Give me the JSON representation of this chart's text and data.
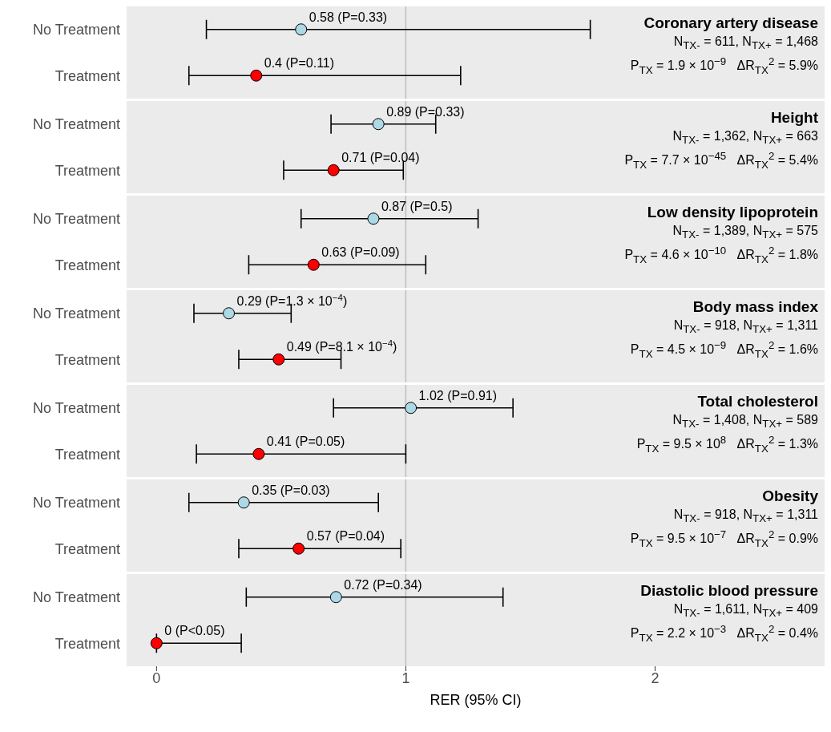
{
  "chart_data": [
    {
      "type": "scatter",
      "orientation": "horizontal",
      "title": "Coronary artery disease",
      "categories": [
        "No Treatment",
        "Treatment"
      ],
      "values": [
        0.58,
        0.4
      ],
      "errors": [
        [
          0.2,
          1.74
        ],
        [
          0.13,
          1.22
        ]
      ],
      "colors": [
        "#add8e6",
        "#ff0000"
      ],
      "value_labels": [
        "0.58 (P=0.33)",
        "0.4 (P=0.11)"
      ],
      "annotations": [
        "N$_{TX-}$ = 611, N$_{TX+}$ = 1,468",
        "P$_{TX}$ = 1.9 × 10$^{−9}$   ΔR$_{TX}$$^{2}$ = 5.9%"
      ],
      "ref_lines": [
        {
          "axis": "x",
          "value": 1,
          "color": "#bdbdbd"
        }
      ],
      "xlim": [
        -0.12,
        2.68
      ],
      "xticks": [
        0,
        1,
        2
      ],
      "tick_labels": "y",
      "marker": "circle"
    },
    {
      "type": "scatter",
      "orientation": "horizontal",
      "title": "Height",
      "categories": [
        "No Treatment",
        "Treatment"
      ],
      "values": [
        0.89,
        0.71
      ],
      "errors": [
        [
          0.7,
          1.12
        ],
        [
          0.51,
          0.99
        ]
      ],
      "colors": [
        "#add8e6",
        "#ff0000"
      ],
      "value_labels": [
        "0.89 (P=0.33)",
        "0.71 (P=0.04)"
      ],
      "annotations": [
        "N$_{TX-}$ = 1,362, N$_{TX+}$ = 663",
        "P$_{TX}$ = 7.7 × 10$^{−45}$   ΔR$_{TX}$$^{2}$ = 5.4%"
      ],
      "ref_lines": [
        {
          "axis": "x",
          "value": 1,
          "color": "#bdbdbd"
        }
      ],
      "xlim": [
        -0.12,
        2.68
      ],
      "xticks": [
        0,
        1,
        2
      ],
      "tick_labels": "y",
      "marker": "circle"
    },
    {
      "type": "scatter",
      "orientation": "horizontal",
      "title": "Low density lipoprotein",
      "categories": [
        "No Treatment",
        "Treatment"
      ],
      "values": [
        0.87,
        0.63
      ],
      "errors": [
        [
          0.58,
          1.29
        ],
        [
          0.37,
          1.08
        ]
      ],
      "colors": [
        "#add8e6",
        "#ff0000"
      ],
      "value_labels": [
        "0.87 (P=0.5)",
        "0.63 (P=0.09)"
      ],
      "annotations": [
        "N$_{TX-}$ = 1,389, N$_{TX+}$ = 575",
        "P$_{TX}$ = 4.6 × 10$^{−10}$   ΔR$_{TX}$$^{2}$ = 1.8%"
      ],
      "ref_lines": [
        {
          "axis": "x",
          "value": 1,
          "color": "#bdbdbd"
        }
      ],
      "xlim": [
        -0.12,
        2.68
      ],
      "xticks": [
        0,
        1,
        2
      ],
      "tick_labels": "y",
      "marker": "circle"
    },
    {
      "type": "scatter",
      "orientation": "horizontal",
      "title": "Body mass index",
      "categories": [
        "No Treatment",
        "Treatment"
      ],
      "values": [
        0.29,
        0.49
      ],
      "errors": [
        [
          0.15,
          0.54
        ],
        [
          0.33,
          0.74
        ]
      ],
      "colors": [
        "#add8e6",
        "#ff0000"
      ],
      "value_labels": [
        "0.29 (P=1.3 × 10$^{−4}$)",
        "0.49 (P=8.1 × 10$^{−4}$)"
      ],
      "annotations": [
        "N$_{TX-}$ = 918, N$_{TX+}$ = 1,311",
        "P$_{TX}$ = 4.5 × 10$^{−9}$   ΔR$_{TX}$$^{2}$ = 1.6%"
      ],
      "ref_lines": [
        {
          "axis": "x",
          "value": 1,
          "color": "#bdbdbd"
        }
      ],
      "xlim": [
        -0.12,
        2.68
      ],
      "xticks": [
        0,
        1,
        2
      ],
      "tick_labels": "y",
      "marker": "circle"
    },
    {
      "type": "scatter",
      "orientation": "horizontal",
      "title": "Total cholesterol",
      "categories": [
        "No Treatment",
        "Treatment"
      ],
      "values": [
        1.02,
        0.41
      ],
      "errors": [
        [
          0.71,
          1.43
        ],
        [
          0.16,
          1.0
        ]
      ],
      "colors": [
        "#add8e6",
        "#ff0000"
      ],
      "value_labels": [
        "1.02 (P=0.91)",
        "0.41 (P=0.05)"
      ],
      "annotations": [
        "N$_{TX-}$ = 1,408, N$_{TX+}$ = 589",
        "P$_{TX}$ = 9.5 × 10$^{8}$   ΔR$_{TX}$$^{2}$ = 1.3%"
      ],
      "ref_lines": [
        {
          "axis": "x",
          "value": 1,
          "color": "#bdbdbd"
        }
      ],
      "xlim": [
        -0.12,
        2.68
      ],
      "xticks": [
        0,
        1,
        2
      ],
      "tick_labels": "y",
      "marker": "circle"
    },
    {
      "type": "scatter",
      "orientation": "horizontal",
      "title": "Obesity",
      "categories": [
        "No Treatment",
        "Treatment"
      ],
      "values": [
        0.35,
        0.57
      ],
      "errors": [
        [
          0.13,
          0.89
        ],
        [
          0.33,
          0.98
        ]
      ],
      "colors": [
        "#add8e6",
        "#ff0000"
      ],
      "value_labels": [
        "0.35 (P=0.03)",
        "0.57 (P=0.04)"
      ],
      "annotations": [
        "N$_{TX-}$ = 918, N$_{TX+}$ = 1,311",
        "P$_{TX}$ = 9.5 × 10$^{−7}$   ΔR$_{TX}$$^{2}$ = 0.9%"
      ],
      "ref_lines": [
        {
          "axis": "x",
          "value": 1,
          "color": "#bdbdbd"
        }
      ],
      "xlim": [
        -0.12,
        2.68
      ],
      "xticks": [
        0,
        1,
        2
      ],
      "tick_labels": "y",
      "marker": "circle"
    },
    {
      "type": "scatter",
      "orientation": "horizontal",
      "title": "Diastolic blood pressure",
      "xlabel": "RER (95% CI)",
      "categories": [
        "No Treatment",
        "Treatment"
      ],
      "values": [
        0.72,
        0
      ],
      "errors": [
        [
          0.36,
          1.39
        ],
        [
          0,
          0.34
        ]
      ],
      "colors": [
        "#add8e6",
        "#ff0000"
      ],
      "value_labels": [
        "0.72 (P=0.34)",
        "0 (P<0.05)"
      ],
      "annotations": [
        "N$_{TX-}$ = 1,611, N$_{TX+}$ = 409",
        "P$_{TX}$ = 2.2 × 10$^{−3}$   ΔR$_{TX}$$^{2}$ = 0.4%"
      ],
      "ref_lines": [
        {
          "axis": "x",
          "value": 1,
          "color": "#bdbdbd"
        }
      ],
      "xlim": [
        -0.12,
        2.68
      ],
      "xticks": [
        0,
        1,
        2
      ],
      "marker": "circle"
    }
  ]
}
